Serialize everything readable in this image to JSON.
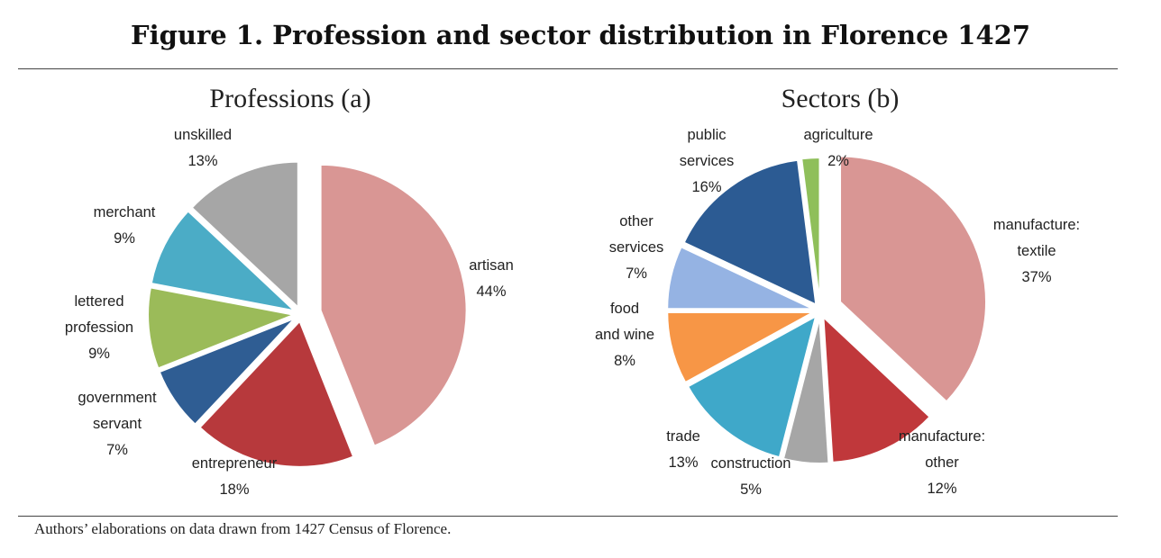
{
  "figure": {
    "title": "Figure 1. Profession and sector distribution in Florence 1427",
    "source": "Authors’ elaborations on data drawn from 1427 Census of Florence."
  },
  "chart_data": [
    {
      "type": "pie",
      "title": "Professions (a)",
      "slices": [
        {
          "label": "artisan",
          "value": 44,
          "pct": "44%",
          "color": "#d99694"
        },
        {
          "label": "entrepreneur",
          "value": 18,
          "pct": "18%",
          "color": "#b7393c"
        },
        {
          "label": "government servant",
          "value": 7,
          "pct": "7%",
          "color": "#2f5d93"
        },
        {
          "label": "lettered profession",
          "value": 9,
          "pct": "9%",
          "color": "#9bbb59"
        },
        {
          "label": "merchant",
          "value": 9,
          "pct": "9%",
          "color": "#4bacc6"
        },
        {
          "label": "unskilled",
          "value": 13,
          "pct": "13%",
          "color": "#a6a6a6"
        }
      ]
    },
    {
      "type": "pie",
      "title": "Sectors (b)",
      "slices": [
        {
          "label": "manufacture: textile",
          "value": 37,
          "pct": "37%",
          "color": "#d99694"
        },
        {
          "label": "manufacture: other",
          "value": 12,
          "pct": "12%",
          "color": "#c0383b"
        },
        {
          "label": "construction",
          "value": 5,
          "pct": "5%",
          "color": "#a6a6a6"
        },
        {
          "label": "trade",
          "value": 13,
          "pct": "13%",
          "color": "#3fa8c9"
        },
        {
          "label": "food and wine",
          "value": 8,
          "pct": "8%",
          "color": "#f79646"
        },
        {
          "label": "other services",
          "value": 7,
          "pct": "7%",
          "color": "#95b3e3"
        },
        {
          "label": "public services",
          "value": 16,
          "pct": "16%",
          "color": "#2c5b93"
        },
        {
          "label": "agriculture",
          "value": 2,
          "pct": "2%",
          "color": "#8fbf5a"
        }
      ]
    }
  ]
}
